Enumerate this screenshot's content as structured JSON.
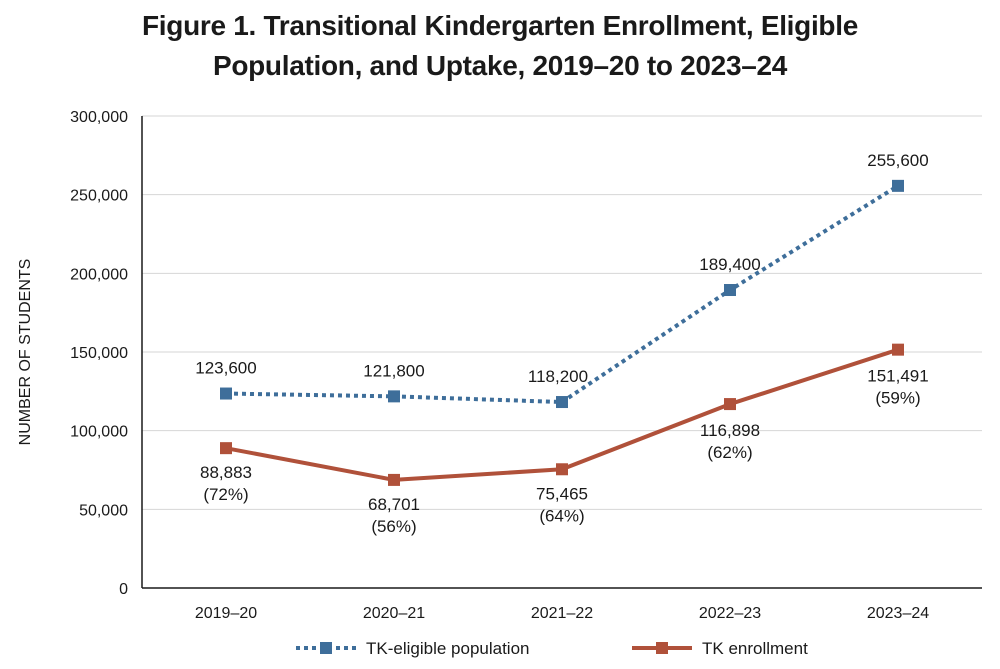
{
  "chart_data": {
    "type": "line",
    "title_line1": "Figure 1. Transitional Kindergarten Enrollment, Eligible",
    "title_line2": "Population, and Uptake, 2019–20 to 2023–24",
    "xlabel": "",
    "ylabel": "NUMBER OF STUDENTS",
    "ylim": [
      0,
      300000
    ],
    "yticks": [
      0,
      50000,
      100000,
      150000,
      200000,
      250000,
      300000
    ],
    "ytick_labels": [
      "0",
      "50,000",
      "100,000",
      "150,000",
      "200,000",
      "250,000",
      "300,000"
    ],
    "grid": true,
    "legend_position": "bottom",
    "categories": [
      "2019–20",
      "2020–21",
      "2021–22",
      "2022–23",
      "2023–24"
    ],
    "series": [
      {
        "name": "TK-eligible population",
        "style": "dotted",
        "color": "#3e6e9a",
        "values": [
          123600,
          121800,
          118200,
          189400,
          255600
        ],
        "labels": [
          "123,600",
          "121,800",
          "118,200",
          "189,400",
          "255,600"
        ],
        "sublabels": [
          "",
          "",
          "",
          "",
          ""
        ]
      },
      {
        "name": "TK enrollment",
        "style": "solid",
        "color": "#b0513a",
        "values": [
          88883,
          68701,
          75465,
          116898,
          151491
        ],
        "labels": [
          "88,883",
          "68,701",
          "75,465",
          "116,898",
          "151,491"
        ],
        "sublabels": [
          "(72%)",
          "(56%)",
          "(64%)",
          "(62%)",
          "(59%)"
        ]
      }
    ]
  }
}
